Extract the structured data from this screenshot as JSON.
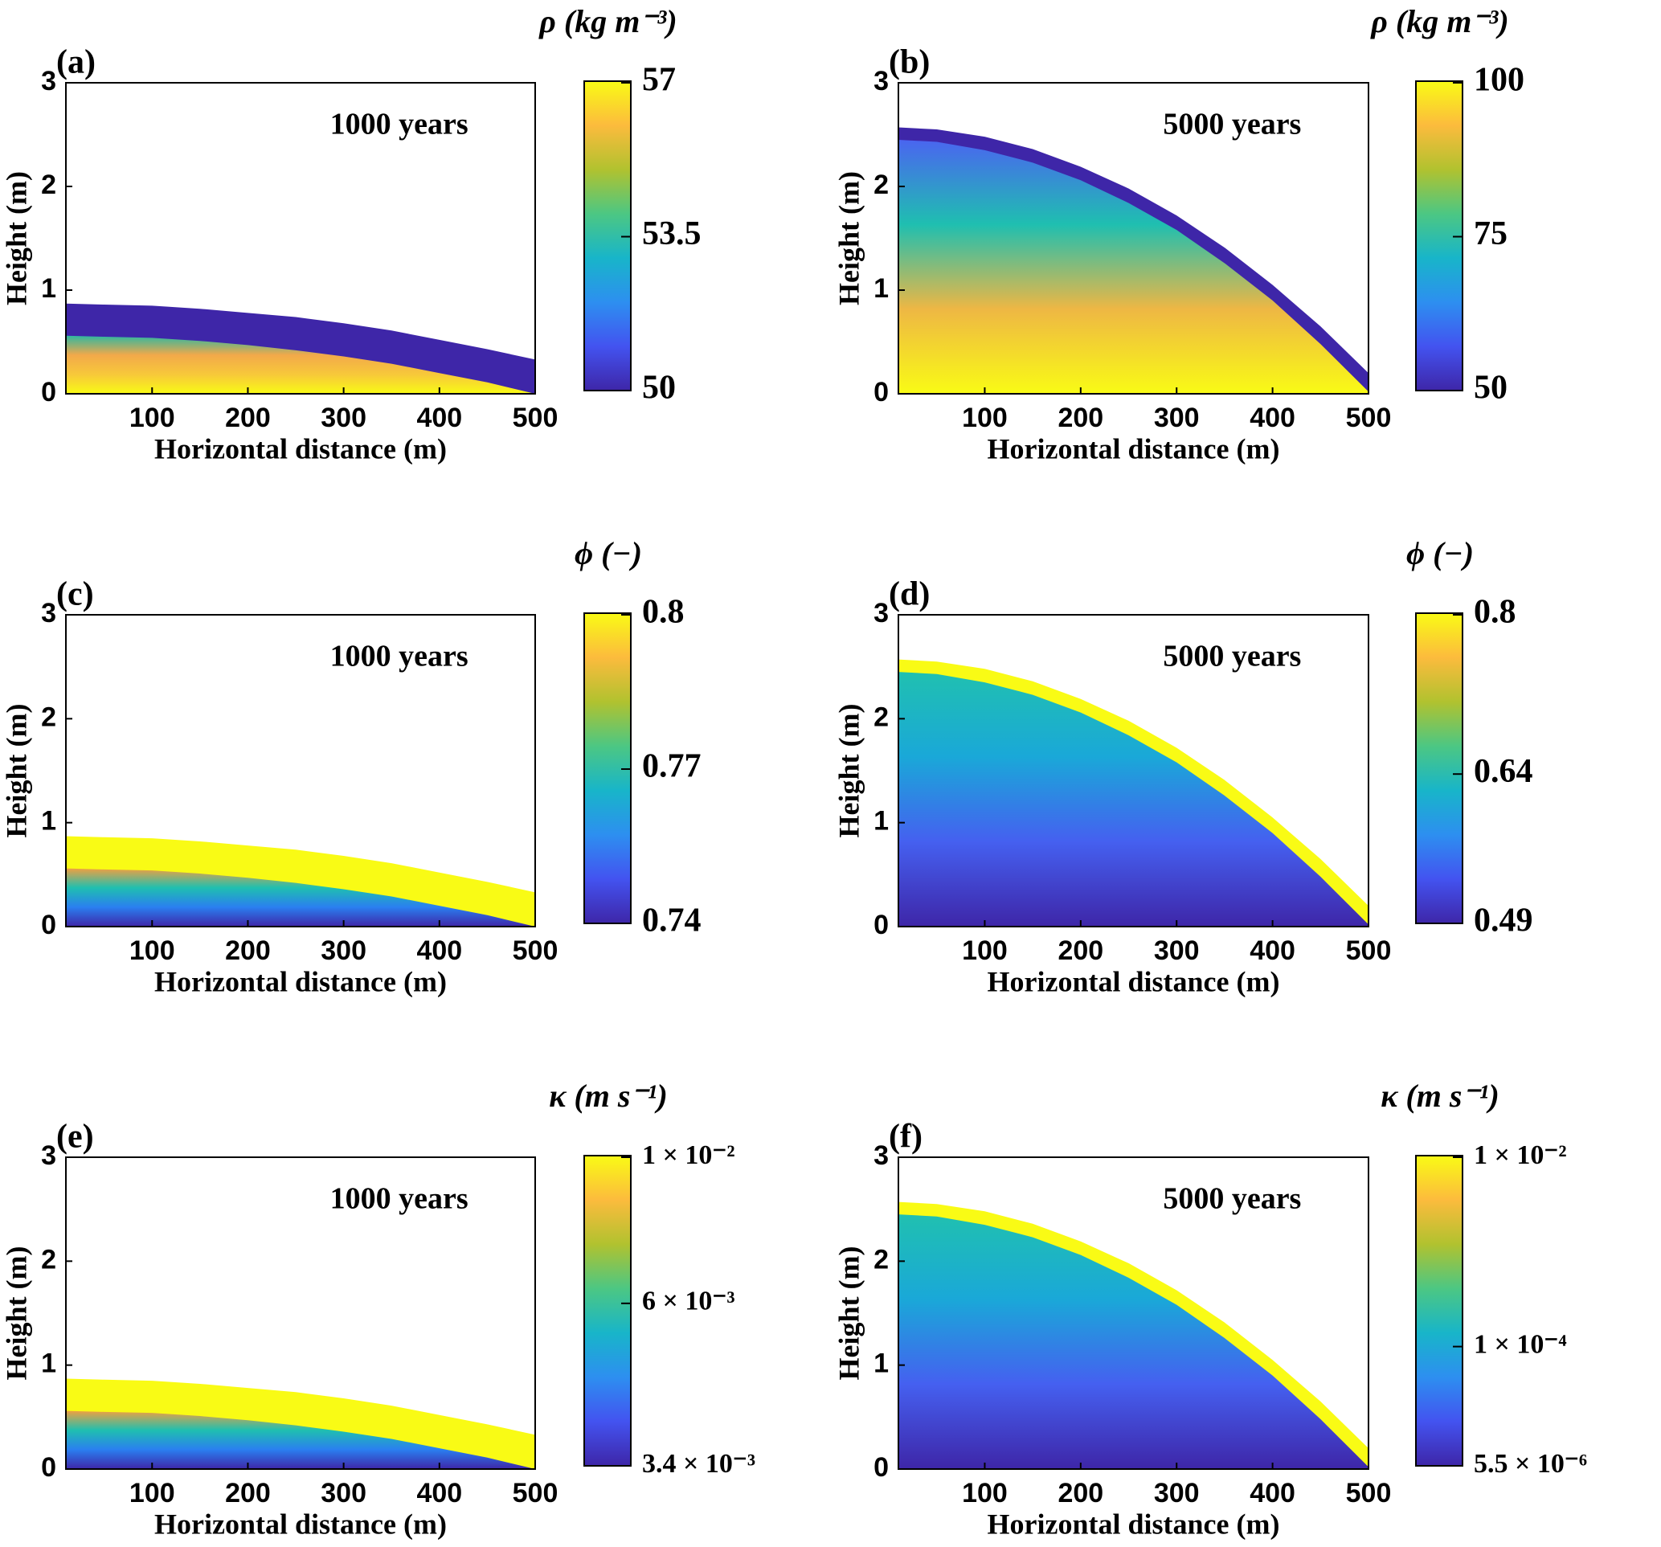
{
  "chart_data": [
    {
      "type": "heatmap",
      "panel_label": "(a)",
      "annotation": "1000 years",
      "xlabel": "Horizontal distance (m)",
      "ylabel": "Height (m)",
      "xlim": [
        10,
        500
      ],
      "ylim": [
        0,
        3
      ],
      "xticks": [
        100,
        200,
        300,
        400,
        500
      ],
      "yticks": [
        0,
        1,
        2,
        3
      ],
      "x": [
        10,
        50,
        100,
        150,
        200,
        250,
        300,
        350,
        400,
        450,
        500
      ],
      "surface": [
        0.87,
        0.86,
        0.85,
        0.82,
        0.78,
        0.74,
        0.68,
        0.61,
        0.52,
        0.43,
        0.33
      ],
      "layer": [
        0.56,
        0.55,
        0.54,
        0.51,
        0.47,
        0.42,
        0.36,
        0.29,
        0.2,
        0.11,
        0.0
      ],
      "band_color": "#3e26a8",
      "fill_colors": [
        "#f9fb15",
        "#f7c83a",
        "#f2a94a",
        "#2fb7a0"
      ],
      "colorbar": {
        "title": "ρ (kg m⁻³)",
        "lim": [
          50,
          57
        ],
        "ticks": [
          50,
          53.5,
          57
        ],
        "log": false,
        "colors": [
          "#3e26a8",
          "#4353f0",
          "#2d8ff0",
          "#18b5c9",
          "#4cc783",
          "#b1c22f",
          "#fcbb3d",
          "#f9fb15"
        ]
      }
    },
    {
      "type": "heatmap",
      "panel_label": "(b)",
      "annotation": "5000 years",
      "xlabel": "Horizontal distance (m)",
      "ylabel": "Height (m)",
      "xlim": [
        10,
        500
      ],
      "ylim": [
        0,
        3
      ],
      "xticks": [
        100,
        200,
        300,
        400,
        500
      ],
      "yticks": [
        0,
        1,
        2,
        3
      ],
      "x": [
        10,
        50,
        100,
        150,
        200,
        250,
        300,
        350,
        400,
        450,
        500
      ],
      "surface": [
        2.57,
        2.55,
        2.48,
        2.36,
        2.19,
        1.98,
        1.72,
        1.41,
        1.05,
        0.65,
        0.2
      ],
      "layer": [
        2.45,
        2.43,
        2.35,
        2.23,
        2.06,
        1.84,
        1.58,
        1.26,
        0.9,
        0.48,
        0.02
      ],
      "band_color": "#3e26a8",
      "fill_colors": [
        "#f9fb15",
        "#eeb744",
        "#1fbfb0",
        "#4a65f0"
      ],
      "colorbar": {
        "title": "ρ (kg m⁻³)",
        "lim": [
          50,
          100
        ],
        "ticks": [
          50,
          75,
          100
        ],
        "log": false,
        "colors": [
          "#3e26a8",
          "#4353f0",
          "#2d8ff0",
          "#18b5c9",
          "#4cc783",
          "#b1c22f",
          "#fcbb3d",
          "#f9fb15"
        ]
      }
    },
    {
      "type": "heatmap",
      "panel_label": "(c)",
      "annotation": "1000 years",
      "xlabel": "Horizontal distance (m)",
      "ylabel": "Height (m)",
      "xlim": [
        10,
        500
      ],
      "ylim": [
        0,
        3
      ],
      "xticks": [
        100,
        200,
        300,
        400,
        500
      ],
      "yticks": [
        0,
        1,
        2,
        3
      ],
      "x": [
        10,
        50,
        100,
        150,
        200,
        250,
        300,
        350,
        400,
        450,
        500
      ],
      "surface": [
        0.87,
        0.86,
        0.85,
        0.82,
        0.78,
        0.74,
        0.68,
        0.61,
        0.52,
        0.43,
        0.33
      ],
      "layer": [
        0.56,
        0.55,
        0.54,
        0.51,
        0.47,
        0.42,
        0.36,
        0.29,
        0.2,
        0.11,
        0.0
      ],
      "band_color": "#f9fb15",
      "fill_colors": [
        "#3e26a8",
        "#2a7ff0",
        "#1fbfb0",
        "#f0a040"
      ],
      "colorbar": {
        "title": "ϕ (−)",
        "lim": [
          0.74,
          0.8
        ],
        "ticks": [
          0.74,
          0.77,
          0.8
        ],
        "log": false,
        "colors": [
          "#3e26a8",
          "#4353f0",
          "#2d8ff0",
          "#18b5c9",
          "#4cc783",
          "#b1c22f",
          "#fcbb3d",
          "#f9fb15"
        ]
      }
    },
    {
      "type": "heatmap",
      "panel_label": "(d)",
      "annotation": "5000 years",
      "xlabel": "Horizontal distance (m)",
      "ylabel": "Height (m)",
      "xlim": [
        10,
        500
      ],
      "ylim": [
        0,
        3
      ],
      "xticks": [
        100,
        200,
        300,
        400,
        500
      ],
      "yticks": [
        0,
        1,
        2,
        3
      ],
      "x": [
        10,
        50,
        100,
        150,
        200,
        250,
        300,
        350,
        400,
        450,
        500
      ],
      "surface": [
        2.57,
        2.55,
        2.48,
        2.36,
        2.19,
        1.98,
        1.72,
        1.41,
        1.05,
        0.65,
        0.2
      ],
      "layer": [
        2.45,
        2.43,
        2.35,
        2.23,
        2.06,
        1.84,
        1.58,
        1.26,
        0.9,
        0.48,
        0.02
      ],
      "band_color": "#f9fb15",
      "fill_colors": [
        "#3e26a8",
        "#4560f0",
        "#1aa8d8",
        "#20c0b0"
      ],
      "colorbar": {
        "title": "ϕ (−)",
        "lim": [
          0.49,
          0.8
        ],
        "ticks": [
          0.49,
          0.64,
          0.8
        ],
        "log": false,
        "colors": [
          "#3e26a8",
          "#4353f0",
          "#2d8ff0",
          "#18b5c9",
          "#4cc783",
          "#b1c22f",
          "#fcbb3d",
          "#f9fb15"
        ]
      }
    },
    {
      "type": "heatmap",
      "panel_label": "(e)",
      "annotation": "1000 years",
      "xlabel": "Horizontal distance (m)",
      "ylabel": "Height (m)",
      "xlim": [
        10,
        500
      ],
      "ylim": [
        0,
        3
      ],
      "xticks": [
        100,
        200,
        300,
        400,
        500
      ],
      "yticks": [
        0,
        1,
        2,
        3
      ],
      "x": [
        10,
        50,
        100,
        150,
        200,
        250,
        300,
        350,
        400,
        450,
        500
      ],
      "surface": [
        0.87,
        0.86,
        0.85,
        0.82,
        0.78,
        0.74,
        0.68,
        0.61,
        0.52,
        0.43,
        0.33
      ],
      "layer": [
        0.56,
        0.55,
        0.54,
        0.51,
        0.47,
        0.42,
        0.36,
        0.29,
        0.2,
        0.11,
        0.0
      ],
      "band_color": "#f9fb15",
      "fill_colors": [
        "#3e26a8",
        "#2a7ff0",
        "#1fbfb0",
        "#f0a040"
      ],
      "colorbar": {
        "title": "κ (m s⁻¹)",
        "lim": [
          0.0034,
          0.01
        ],
        "log": true,
        "ticks": [
          {
            "value": 0.0034,
            "label": "3.4 × 10⁻³"
          },
          {
            "value": 0.006,
            "label": "6 × 10⁻³"
          },
          {
            "value": 0.01,
            "label": "1 × 10⁻²"
          }
        ],
        "colors": [
          "#3e26a8",
          "#4353f0",
          "#2d8ff0",
          "#18b5c9",
          "#4cc783",
          "#b1c22f",
          "#fcbb3d",
          "#f9fb15"
        ]
      }
    },
    {
      "type": "heatmap",
      "panel_label": "(f)",
      "annotation": "5000 years",
      "xlabel": "Horizontal distance (m)",
      "ylabel": "Height (m)",
      "xlim": [
        10,
        500
      ],
      "ylim": [
        0,
        3
      ],
      "xticks": [
        100,
        200,
        300,
        400,
        500
      ],
      "yticks": [
        0,
        1,
        2,
        3
      ],
      "x": [
        10,
        50,
        100,
        150,
        200,
        250,
        300,
        350,
        400,
        450,
        500
      ],
      "surface": [
        2.57,
        2.55,
        2.48,
        2.36,
        2.19,
        1.98,
        1.72,
        1.41,
        1.05,
        0.65,
        0.2
      ],
      "layer": [
        2.45,
        2.43,
        2.35,
        2.23,
        2.06,
        1.84,
        1.58,
        1.26,
        0.9,
        0.48,
        0.02
      ],
      "band_color": "#f9fb15",
      "fill_colors": [
        "#3e26a8",
        "#4560f0",
        "#1aa8d8",
        "#20c0b0"
      ],
      "colorbar": {
        "title": "κ (m s⁻¹)",
        "lim": [
          5.5e-06,
          0.01
        ],
        "log": true,
        "ticks": [
          {
            "value": 5.5e-06,
            "label": "5.5 × 10⁻⁶"
          },
          {
            "value": 0.0001,
            "label": "1 × 10⁻⁴"
          },
          {
            "value": 0.01,
            "label": "1 × 10⁻²"
          }
        ],
        "colors": [
          "#3e26a8",
          "#4353f0",
          "#2d8ff0",
          "#18b5c9",
          "#4cc783",
          "#b1c22f",
          "#fcbb3d",
          "#f9fb15"
        ]
      }
    }
  ]
}
